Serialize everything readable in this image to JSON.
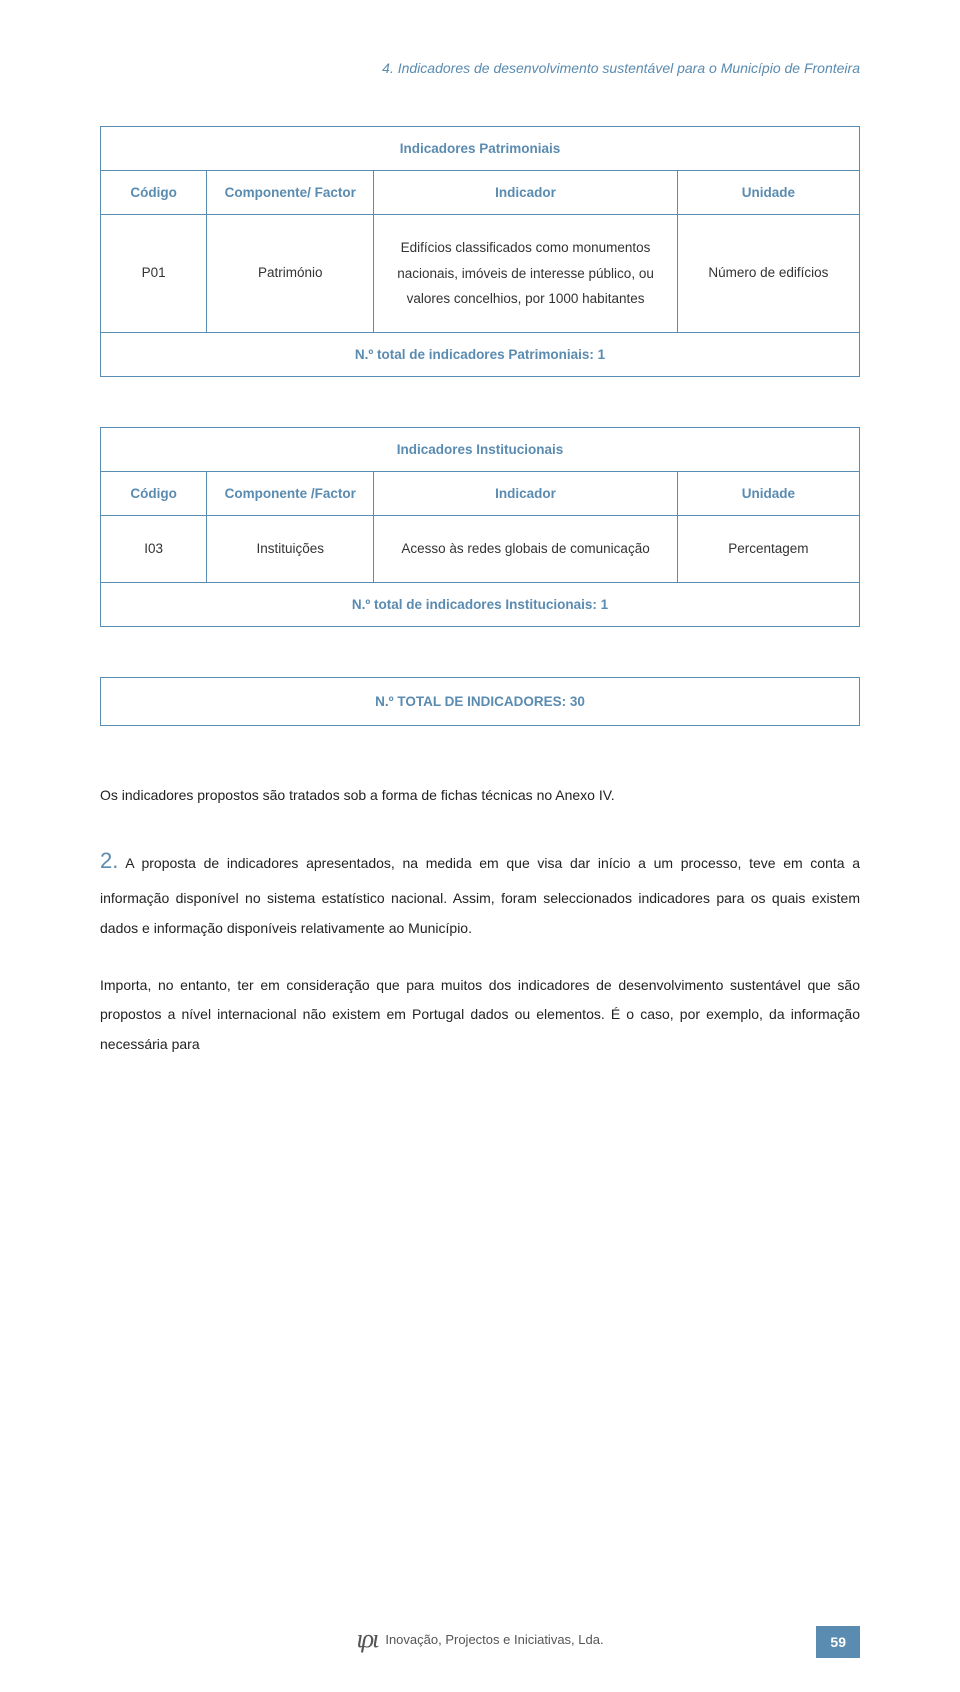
{
  "colors": {
    "accent": "#5a8bb0",
    "text": "#222222",
    "border": "#5a8bb0",
    "background": "#ffffff",
    "pagenum_bg": "#5a8bb0",
    "pagenum_fg": "#ffffff"
  },
  "header": {
    "title": "4. Indicadores de desenvolvimento sustentável para o Município de Fronteira"
  },
  "table1": {
    "title": "Indicadores Patrimoniais",
    "headers": {
      "c1": "Código",
      "c2": "Componente/ Factor",
      "c3": "Indicador",
      "c4": "Unidade"
    },
    "row": {
      "codigo": "P01",
      "componente": "Património",
      "indicador": "Edifícios classificados como monumentos nacionais, imóveis de interesse público, ou valores concelhios, por 1000 habitantes",
      "unidade": "Número de edifícios"
    },
    "footer": "N.º total de indicadores Patrimoniais: 1"
  },
  "table2": {
    "title": "Indicadores Institucionais",
    "headers": {
      "c1": "Código",
      "c2": "Componente /Factor",
      "c3": "Indicador",
      "c4": "Unidade"
    },
    "row": {
      "codigo": "I03",
      "componente": "Instituições",
      "indicador": "Acesso às redes globais de comunicação",
      "unidade": "Percentagem"
    },
    "footer": "N.º total de indicadores Institucionais: 1"
  },
  "total": "N.º TOTAL DE INDICADORES: 30",
  "paragraphs": {
    "p1": "Os indicadores propostos são tratados sob a forma de fichas técnicas no Anexo IV.",
    "p2_lead": "2.",
    "p2": " A proposta de indicadores apresentados, na medida em que visa dar início a um processo, teve em conta a informação disponível no sistema estatístico nacional. Assim, foram seleccionados indicadores para os quais existem dados e informação disponíveis relativamente ao Município.",
    "p3": "Importa, no entanto, ter em consideração que para muitos dos indicadores de desenvolvimento sustentável que são propostos a nível internacional não existem em Portugal dados ou elementos. É o caso, por exemplo, da informação necessária para"
  },
  "footer": {
    "logo_glyph": "ιρι",
    "logo_text": "Inovação, Projectos e Iniciativas, Lda.",
    "page": "59"
  }
}
